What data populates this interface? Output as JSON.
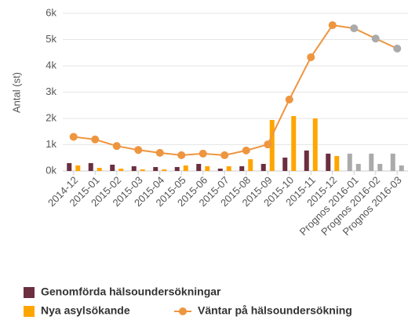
{
  "chart_data": {
    "type": "bar-line",
    "y_label": "Antal (st)",
    "categories": [
      "2014-12",
      "2015-01",
      "2015-02",
      "2015-03",
      "2015-04",
      "2015-05",
      "2015-06",
      "2015-07",
      "2015-08",
      "2015-09",
      "2015-10",
      "2015-11",
      "2015-12",
      "Prognos 2016-01",
      "Prognos 2016-02",
      "Prognos 2016-03"
    ],
    "series": [
      {
        "name": "Genomförda hälsoundersökningar",
        "type": "bar",
        "color": "#6b2f3f",
        "colors": [
          "#6b2f3f",
          "#6b2f3f",
          "#6b2f3f",
          "#6b2f3f",
          "#6b2f3f",
          "#6b2f3f",
          "#6b2f3f",
          "#6b2f3f",
          "#6b2f3f",
          "#6b2f3f",
          "#6b2f3f",
          "#6b2f3f",
          "#6b2f3f",
          "#aaaaaa",
          "#aaaaaa",
          "#aaaaaa"
        ],
        "values": [
          300,
          300,
          240,
          180,
          150,
          150,
          270,
          90,
          180,
          270,
          510,
          780,
          660,
          660,
          660,
          660
        ]
      },
      {
        "name": "Nya asylsökande",
        "type": "bar",
        "color": "#ffa500",
        "colors": [
          "#ffa500",
          "#ffa500",
          "#ffa500",
          "#ffa500",
          "#ffa500",
          "#ffa500",
          "#ffa500",
          "#ffa500",
          "#ffa500",
          "#ffa500",
          "#ffa500",
          "#ffa500",
          "#ffa500",
          "#aaaaaa",
          "#aaaaaa",
          "#aaaaaa"
        ],
        "values": [
          210,
          120,
          90,
          60,
          60,
          210,
          180,
          180,
          450,
          1940,
          2090,
          2000,
          570,
          270,
          270,
          210
        ]
      },
      {
        "name": "Väntar på hälsoundersökning",
        "type": "line",
        "color": "#ee9540",
        "colors": [
          "#ee9540",
          "#ee9540",
          "#ee9540",
          "#ee9540",
          "#ee9540",
          "#ee9540",
          "#ee9540",
          "#ee9540",
          "#ee9540",
          "#ee9540",
          "#ee9540",
          "#ee9540",
          "#ee9540",
          "#aaaaaa",
          "#aaaaaa",
          "#aaaaaa"
        ],
        "values": [
          1300,
          1200,
          950,
          800,
          690,
          600,
          660,
          600,
          780,
          1010,
          2720,
          4330,
          5550,
          5430,
          5040,
          4660
        ]
      }
    ],
    "ylim": [
      0,
      6000
    ],
    "yticks": [
      {
        "value": 0,
        "label": "0k"
      },
      {
        "value": 1000,
        "label": "1k"
      },
      {
        "value": 2000,
        "label": "2k"
      },
      {
        "value": 3000,
        "label": "3k"
      },
      {
        "value": 4000,
        "label": "4k"
      },
      {
        "value": 5000,
        "label": "5k"
      },
      {
        "value": 6000,
        "label": "6k"
      }
    ],
    "grid": true,
    "legend": "bottom"
  }
}
